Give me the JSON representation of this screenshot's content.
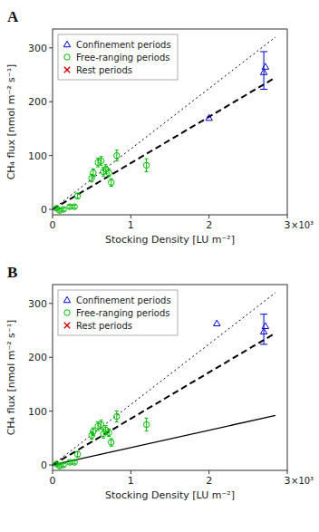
{
  "chart_data": [
    {
      "type": "scatter",
      "title": "A",
      "x_label": "Stocking Density [LU m⁻²]",
      "y_label": "CH₄ flux  [nmol m⁻² s⁻¹]",
      "xlim": [
        0,
        3.0
      ],
      "ylim": [
        -10,
        335
      ],
      "xticks": [
        0,
        1,
        2,
        3
      ],
      "yticks": [
        0,
        100,
        200,
        300
      ],
      "grid": false,
      "legend": "upper left",
      "annotations": [
        "×10³"
      ],
      "series": [
        {
          "name": "Confinement periods",
          "color": "#0000cc",
          "marker": "triangle",
          "x": [
            2.0,
            2.7,
            2.72
          ],
          "values": [
            170,
            255,
            265
          ]
        },
        {
          "name": "Free-ranging periods",
          "color": "#00bb00",
          "marker": "circle",
          "x": [
            0.05,
            0.09,
            0.14,
            0.22,
            0.28,
            0.32,
            0.5,
            0.52,
            0.58,
            0.62,
            0.65,
            0.68,
            0.72,
            0.75,
            0.82,
            1.2
          ],
          "values": [
            2,
            -2,
            0,
            5,
            5,
            25,
            58,
            68,
            87,
            90,
            70,
            75,
            68,
            50,
            100,
            82
          ],
          "errors": [
            3,
            3,
            3,
            3,
            3,
            5,
            7,
            7,
            8,
            8,
            8,
            8,
            7,
            7,
            10,
            12
          ]
        },
        {
          "name": "Rest periods",
          "color": "#cc0000",
          "marker": "x",
          "x": [],
          "values": []
        },
        {
          "type": "errorbar",
          "color": "#0000cc",
          "x": [
            2.7
          ],
          "values": [
            258
          ],
          "errors": [
            35
          ]
        },
        {
          "type": "line",
          "line_style": "dotted",
          "color": "#000000",
          "x": [
            0,
            2.85
          ],
          "values": [
            0,
            320
          ]
        },
        {
          "type": "line",
          "line_style": "dashed",
          "color": "#000000",
          "x": [
            0,
            2.85
          ],
          "values": [
            0,
            245
          ]
        }
      ]
    },
    {
      "type": "scatter",
      "title": "B",
      "x_label": "Stocking Density [LU m⁻²]",
      "y_label": "CH₄ flux  [nmol m⁻² s⁻¹]",
      "xlim": [
        0,
        3.0
      ],
      "ylim": [
        -10,
        335
      ],
      "xticks": [
        0,
        1,
        2,
        3
      ],
      "yticks": [
        0,
        100,
        200,
        300
      ],
      "grid": false,
      "legend": "upper left",
      "annotations": [
        "×10³"
      ],
      "series": [
        {
          "name": "Confinement periods",
          "color": "#0000cc",
          "marker": "triangle",
          "x": [
            2.1,
            2.7,
            2.72
          ],
          "values": [
            263,
            248,
            258
          ]
        },
        {
          "name": "Free-ranging periods",
          "color": "#00bb00",
          "marker": "circle",
          "x": [
            0.05,
            0.09,
            0.14,
            0.22,
            0.28,
            0.32,
            0.5,
            0.52,
            0.58,
            0.62,
            0.65,
            0.68,
            0.72,
            0.75,
            0.82,
            1.2
          ],
          "values": [
            2,
            -2,
            0,
            5,
            5,
            20,
            55,
            62,
            72,
            75,
            58,
            65,
            60,
            42,
            90,
            75
          ],
          "errors": [
            3,
            3,
            3,
            3,
            3,
            5,
            7,
            7,
            8,
            8,
            8,
            8,
            7,
            7,
            10,
            12
          ]
        },
        {
          "name": "Rest periods",
          "color": "#cc0000",
          "marker": "x",
          "x": [],
          "values": []
        },
        {
          "type": "errorbar",
          "color": "#0000cc",
          "x": [
            2.7
          ],
          "values": [
            252
          ],
          "errors": [
            28
          ]
        },
        {
          "type": "line",
          "line_style": "dotted",
          "color": "#000000",
          "x": [
            0,
            2.85
          ],
          "values": [
            0,
            320
          ]
        },
        {
          "type": "line",
          "line_style": "dashed",
          "color": "#000000",
          "x": [
            0,
            2.85
          ],
          "values": [
            0,
            245
          ]
        },
        {
          "type": "line",
          "line_style": "solid",
          "color": "#000000",
          "x": [
            0,
            2.85
          ],
          "values": [
            0,
            92
          ]
        }
      ]
    }
  ]
}
